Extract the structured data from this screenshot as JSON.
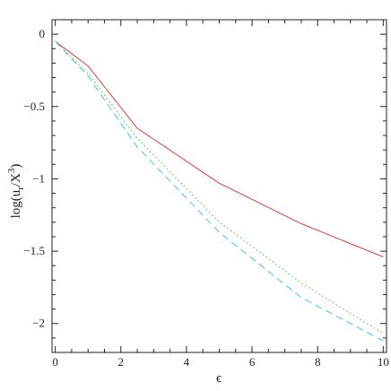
{
  "chart_data": {
    "type": "line",
    "xlabel": "ϵ",
    "ylabel_main": "log(u",
    "ylabel_sub": "r",
    "ylabel_mid": "/X",
    "ylabel_sup": "3",
    "ylabel_end": ")",
    "xlim": [
      -0.1,
      10.1
    ],
    "ylim": [
      -2.2,
      0.1
    ],
    "xticks": [
      0,
      2,
      4,
      6,
      8,
      10
    ],
    "xtick_labels": [
      "0",
      "2",
      "4",
      "6",
      "8",
      "10"
    ],
    "yticks": [
      0,
      -0.5,
      -1,
      -1.5,
      -2
    ],
    "ytick_labels": [
      "0",
      "−0.5",
      "−1",
      "−1.5",
      "−2"
    ],
    "grid": false,
    "series": [
      {
        "style": "solid",
        "color": "#e03c3c",
        "x": [
          0,
          1,
          2.5,
          5,
          7.5,
          10
        ],
        "y": [
          -0.05,
          -0.22,
          -0.65,
          -1.03,
          -1.31,
          -1.54
        ]
      },
      {
        "style": "dotted",
        "color": "#3cc83c",
        "x": [
          0,
          1,
          2.5,
          5,
          7.5,
          10
        ],
        "y": [
          -0.05,
          -0.27,
          -0.72,
          -1.3,
          -1.72,
          -2.07
        ]
      },
      {
        "style": "dashed",
        "color": "#3cc8dc",
        "x": [
          0,
          1,
          2.5,
          5,
          7.5,
          10
        ],
        "y": [
          -0.05,
          -0.29,
          -0.78,
          -1.37,
          -1.82,
          -2.12
        ]
      }
    ]
  }
}
